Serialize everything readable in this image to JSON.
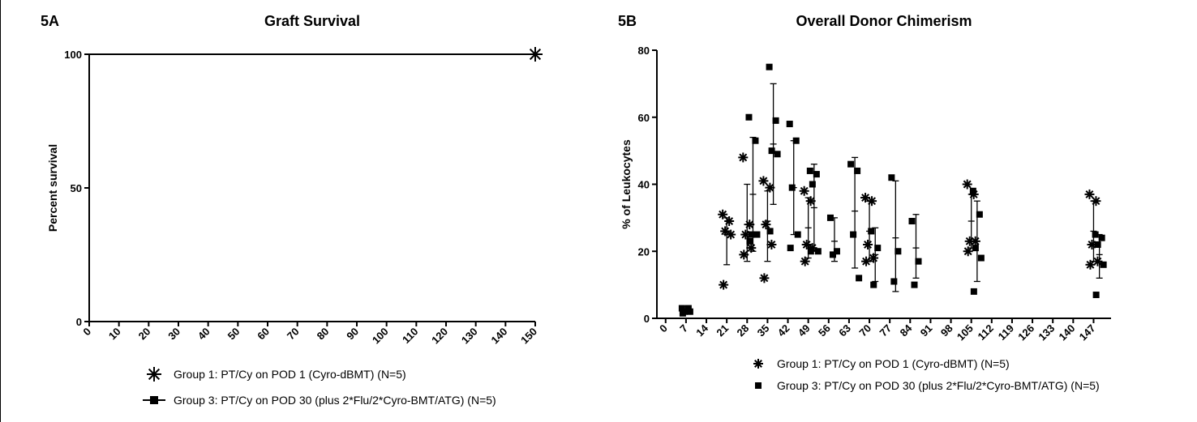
{
  "chart_data": [
    {
      "type": "line",
      "panel_label": "5A",
      "title": "Graft Survival",
      "ylabel": "Percent survival",
      "xlabel": "",
      "xlim": [
        0,
        150
      ],
      "ylim": [
        0,
        100
      ],
      "x_ticks": [
        "0",
        "10",
        "20",
        "30",
        "40",
        "50",
        "60",
        "70",
        "80",
        "90",
        "100",
        "110",
        "120",
        "130",
        "140",
        "150"
      ],
      "y_ticks": [
        "0",
        "50",
        "100"
      ],
      "grid": false,
      "legend_position": "bottom",
      "series": [
        {
          "name": "Group 1: PT/Cy on POD 1 (Cyro-dBMT) (N=5)",
          "marker": "asterisk",
          "x": [
            0,
            150
          ],
          "y": [
            100,
            100
          ]
        },
        {
          "name": "Group 3: PT/Cy on POD 30 (plus 2*Flu/2*Cyro-BMT/ATG) (N=5)",
          "marker": "square",
          "x": [
            0,
            150
          ],
          "y": [
            100,
            100
          ]
        }
      ]
    },
    {
      "type": "scatter",
      "panel_label": "5B",
      "title": "Overall Donor Chimerism",
      "ylabel": "% of Leukocytes",
      "xlabel": "",
      "xlim": [
        -3,
        153
      ],
      "ylim": [
        0,
        80
      ],
      "x_ticks": [
        "0",
        "7",
        "14",
        "21",
        "28",
        "35",
        "42",
        "49",
        "56",
        "63",
        "70",
        "77",
        "84",
        "91",
        "98",
        "105",
        "112",
        "119",
        "126",
        "133",
        "140",
        "147"
      ],
      "y_ticks": [
        "0",
        "20",
        "40",
        "60",
        "80"
      ],
      "grid": false,
      "legend_position": "bottom",
      "series": [
        {
          "name": "Group 1: PT/Cy on POD 1 (Cyro-dBMT)  (N=5)",
          "marker": "asterisk",
          "points": [
            [
              21,
              31
            ],
            [
              21,
              29
            ],
            [
              21,
              26
            ],
            [
              21,
              25
            ],
            [
              21,
              10
            ],
            [
              28,
              48
            ],
            [
              28,
              28
            ],
            [
              28,
              25
            ],
            [
              28,
              21
            ],
            [
              28,
              19
            ],
            [
              35,
              41
            ],
            [
              35,
              39
            ],
            [
              35,
              28
            ],
            [
              35,
              22
            ],
            [
              35,
              12
            ],
            [
              49,
              38
            ],
            [
              49,
              35
            ],
            [
              49,
              22
            ],
            [
              49,
              21
            ],
            [
              49,
              17
            ],
            [
              70,
              36
            ],
            [
              70,
              35
            ],
            [
              70,
              22
            ],
            [
              70,
              18
            ],
            [
              70,
              17
            ],
            [
              105,
              40
            ],
            [
              105,
              37
            ],
            [
              105,
              23
            ],
            [
              105,
              23
            ],
            [
              105,
              20
            ],
            [
              147,
              37
            ],
            [
              147,
              35
            ],
            [
              147,
              22
            ],
            [
              147,
              17
            ],
            [
              147,
              16
            ]
          ],
          "error_bars": [
            {
              "x": 21,
              "mean": 25,
              "upper": 30,
              "lower": 16
            },
            {
              "x": 28,
              "mean": 28,
              "upper": 40,
              "lower": 17
            },
            {
              "x": 35,
              "mean": 29,
              "upper": 38,
              "lower": 17
            },
            {
              "x": 49,
              "mean": 27,
              "upper": 36,
              "lower": 18
            },
            {
              "x": 70,
              "mean": 26,
              "upper": 35,
              "lower": 17
            },
            {
              "x": 105,
              "mean": 29,
              "upper": 37,
              "lower": 21
            },
            {
              "x": 147,
              "mean": 26,
              "upper": 35,
              "lower": 17
            }
          ]
        },
        {
          "name": "Group 3: PT/Cy on POD 30 (plus 2*Flu/2*Cyro-BMT/ATG) (N=5)",
          "marker": "square",
          "points": [
            [
              7,
              3
            ],
            [
              7,
              3
            ],
            [
              7,
              2
            ],
            [
              7,
              2
            ],
            [
              7,
              1.5
            ],
            [
              30,
              60
            ],
            [
              30,
              53
            ],
            [
              30,
              25
            ],
            [
              30,
              25
            ],
            [
              30,
              23
            ],
            [
              37,
              75
            ],
            [
              37,
              59
            ],
            [
              37,
              50
            ],
            [
              37,
              49
            ],
            [
              37,
              26
            ],
            [
              44,
              58
            ],
            [
              44,
              53
            ],
            [
              44,
              39
            ],
            [
              44,
              25
            ],
            [
              44,
              21
            ],
            [
              51,
              44
            ],
            [
              51,
              43
            ],
            [
              51,
              40
            ],
            [
              51,
              20
            ],
            [
              51,
              20
            ],
            [
              58,
              30
            ],
            [
              58,
              20
            ],
            [
              58,
              19
            ],
            [
              65,
              46
            ],
            [
              65,
              44
            ],
            [
              65,
              25
            ],
            [
              65,
              12
            ],
            [
              72,
              26
            ],
            [
              72,
              21
            ],
            [
              72,
              10
            ],
            [
              79,
              42
            ],
            [
              79,
              20
            ],
            [
              79,
              11
            ],
            [
              86,
              29
            ],
            [
              86,
              17
            ],
            [
              86,
              10
            ],
            [
              107,
              38
            ],
            [
              107,
              31
            ],
            [
              107,
              21
            ],
            [
              107,
              18
            ],
            [
              107,
              8
            ],
            [
              149,
              25
            ],
            [
              149,
              24
            ],
            [
              149,
              22
            ],
            [
              149,
              16
            ],
            [
              149,
              7
            ]
          ],
          "error_bars": [
            {
              "x": 7,
              "mean": 2.5,
              "upper": 3.5,
              "lower": 1.5
            },
            {
              "x": 30,
              "mean": 37,
              "upper": 54,
              "lower": 20
            },
            {
              "x": 37,
              "mean": 52,
              "upper": 70,
              "lower": 34
            },
            {
              "x": 44,
              "mean": 39,
              "upper": 53,
              "lower": 25
            },
            {
              "x": 51,
              "mean": 33,
              "upper": 46,
              "lower": 20
            },
            {
              "x": 58,
              "mean": 23,
              "upper": 30,
              "lower": 17
            },
            {
              "x": 65,
              "mean": 32,
              "upper": 48,
              "lower": 15
            },
            {
              "x": 72,
              "mean": 19,
              "upper": 27,
              "lower": 11
            },
            {
              "x": 79,
              "mean": 24,
              "upper": 41,
              "lower": 8
            },
            {
              "x": 86,
              "mean": 21,
              "upper": 31,
              "lower": 12
            },
            {
              "x": 107,
              "mean": 23,
              "upper": 35,
              "lower": 11
            },
            {
              "x": 149,
              "mean": 19,
              "upper": 25,
              "lower": 12
            }
          ]
        }
      ]
    }
  ]
}
